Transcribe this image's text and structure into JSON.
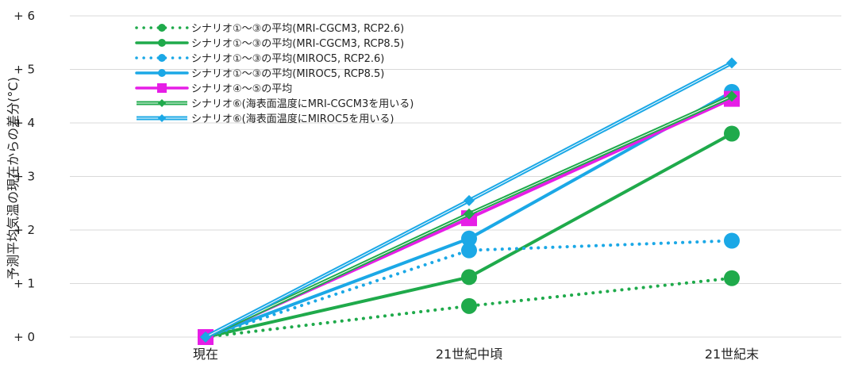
{
  "chart_data": {
    "type": "line",
    "title": "",
    "xlabel": "",
    "ylabel": "予測平均気温の現在からの差分(°C)",
    "categories": [
      "現在",
      "21世紀中頃",
      "21世紀末"
    ],
    "y_tick_labels": [
      "+ 0",
      "+ 1",
      "+ 2",
      "+ 3",
      "+ 4",
      "+ 5",
      "+ 6"
    ],
    "ylim": [
      0,
      6
    ],
    "grid": "horizontal",
    "legend_position": "top-left",
    "series": [
      {
        "name": "シナリオ①～③の平均(MRI-CGCM3, RCP2.6)",
        "values": [
          0,
          0.58,
          1.1
        ],
        "color": "#1faa4b",
        "style": "dotted-line-circle"
      },
      {
        "name": "シナリオ①～③の平均(MRI-CGCM3, RCP8.5)",
        "values": [
          0,
          1.12,
          3.8
        ],
        "color": "#1faa4b",
        "style": "solid-line-circle"
      },
      {
        "name": "シナリオ①～③の平均(MIROC5, RCP2.6)",
        "values": [
          0,
          1.62,
          1.8
        ],
        "color": "#1ba8e6",
        "style": "dotted-line-circle"
      },
      {
        "name": "シナリオ①～③の平均(MIROC5, RCP8.5)",
        "values": [
          0,
          1.84,
          4.58
        ],
        "color": "#1ba8e6",
        "style": "solid-line-circle"
      },
      {
        "name": "シナリオ④～⑤の平均",
        "values": [
          0,
          2.22,
          4.45
        ],
        "color": "#e61ee6",
        "style": "solid-line-square"
      },
      {
        "name": "シナリオ⑥(海表面温度にMRI-CGCM3を用いる)",
        "values": [
          0,
          2.3,
          4.5
        ],
        "color": "#1faa4b",
        "style": "double-line-diamond"
      },
      {
        "name": "シナリオ⑥(海表面温度にMIROC5を用いる)",
        "values": [
          0,
          2.55,
          5.12
        ],
        "color": "#1ba8e6",
        "style": "double-line-diamond"
      }
    ]
  }
}
